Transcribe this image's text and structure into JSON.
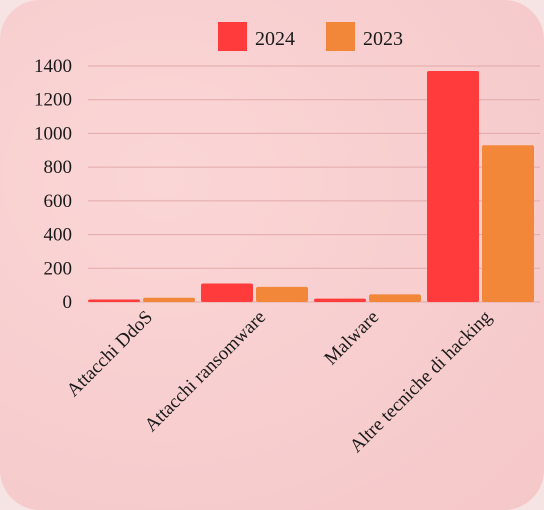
{
  "chart_data": {
    "type": "bar",
    "categories": [
      "Attacchi DdoS",
      "Attacchi ransomware",
      "Malware",
      "Altre tecniche di hacking"
    ],
    "series": [
      {
        "name": "2024",
        "color": "#ff3b3b",
        "values": [
          15,
          110,
          20,
          1370
        ]
      },
      {
        "name": "2023",
        "color": "#f2873a",
        "values": [
          25,
          90,
          45,
          930
        ]
      }
    ],
    "yticks": [
      0,
      200,
      400,
      600,
      800,
      1000,
      1200,
      1400
    ],
    "ylim": [
      0,
      1400
    ],
    "grid": true,
    "legend": "top-center"
  }
}
